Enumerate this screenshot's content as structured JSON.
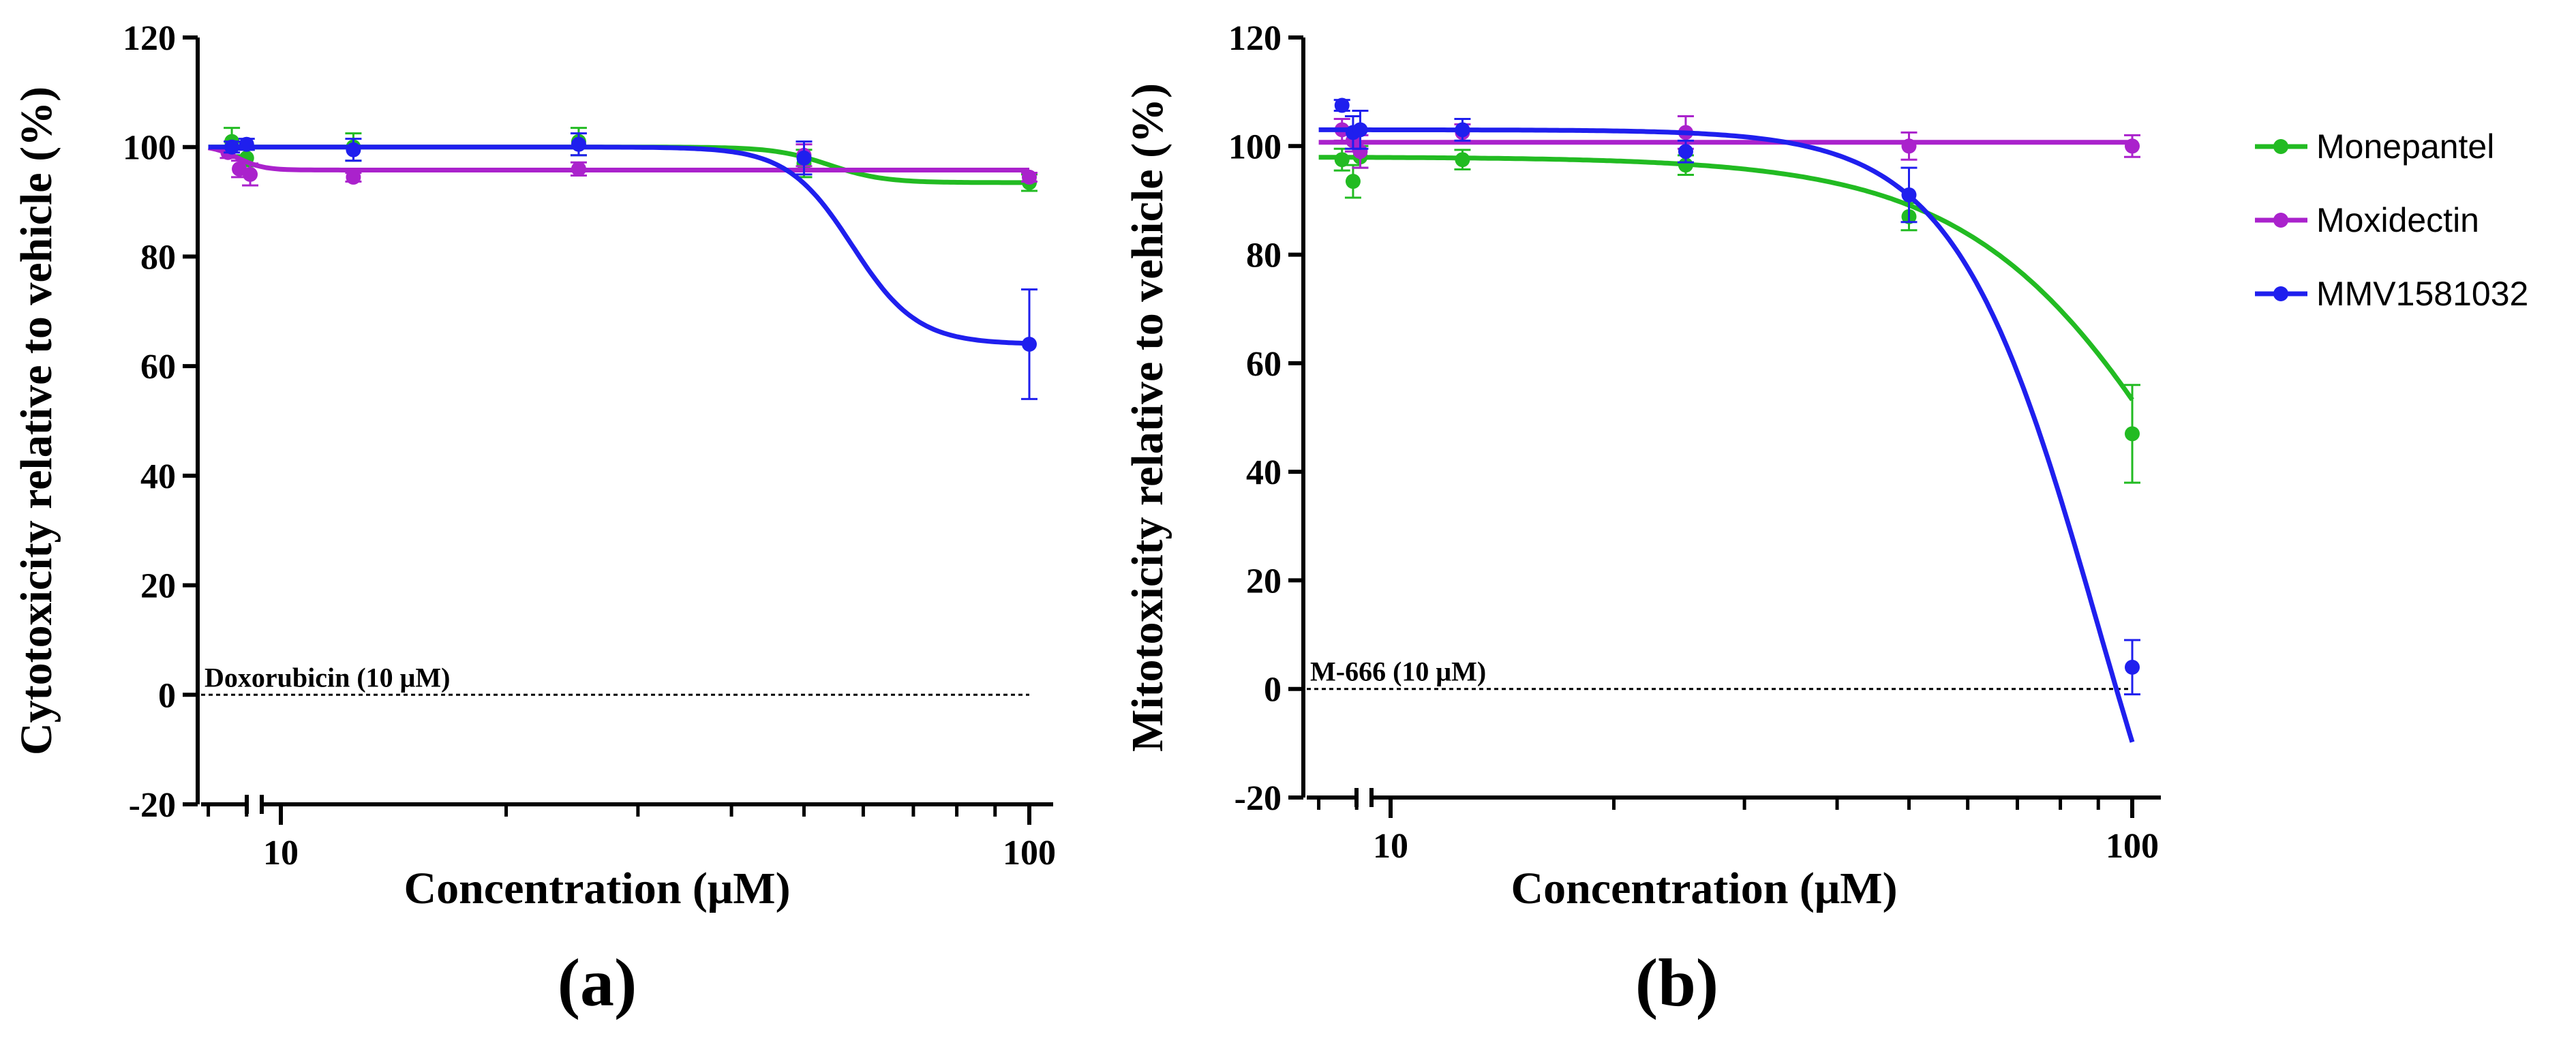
{
  "figure": {
    "legend": [
      {
        "name": "Monepantel",
        "color": "#22bb22"
      },
      {
        "name": "Moxidectin",
        "color": "#aa22cc"
      },
      {
        "name": "MMV1581032",
        "color": "#1f1fee"
      }
    ]
  },
  "chart_data": [
    {
      "type": "line",
      "panel_label": "(a)",
      "xlabel": "Concentration (μM)",
      "ylabel": "Cytotoxicity relative to vehicle (%)",
      "xscale": "log",
      "xlim": [
        8.0,
        110
      ],
      "ylim": [
        -20,
        120
      ],
      "yticks": [
        -20,
        0,
        20,
        40,
        60,
        80,
        100,
        120
      ],
      "xticks": [
        10,
        100
      ],
      "baseline": {
        "y": 0,
        "label": "Doxorubicin (10 μM)"
      },
      "series": [
        {
          "name": "Monepantel",
          "color": "#22bb22",
          "points": [
            {
              "x": 8.6,
              "y": 101,
              "err": 2.5
            },
            {
              "x": 9.0,
              "y": 98,
              "err": 1.5
            },
            {
              "x": 12.5,
              "y": 100,
              "err": 2.5
            },
            {
              "x": 25,
              "y": 101,
              "err": 2.5
            },
            {
              "x": 50,
              "y": 97,
              "err": 2.5
            },
            {
              "x": 100,
              "y": 93.5,
              "err": 1.5
            }
          ],
          "fit": {
            "top": 100,
            "bottom": 93.5,
            "ec50": 54,
            "hill": 12
          }
        },
        {
          "name": "Moxidectin",
          "color": "#aa22cc",
          "points": [
            {
              "x": 8.5,
              "y": 99,
              "err": 1
            },
            {
              "x": 8.8,
              "y": 96,
              "err": 1.5
            },
            {
              "x": 9.1,
              "y": 95,
              "err": 2
            },
            {
              "x": 12.5,
              "y": 94.5,
              "err": 0.8
            },
            {
              "x": 25,
              "y": 96,
              "err": 1.2
            },
            {
              "x": 50,
              "y": 98.5,
              "err": 2
            },
            {
              "x": 100,
              "y": 94.5,
              "err": 0.8
            }
          ],
          "fit": {
            "top": 100.3,
            "bottom": 95.8,
            "ec50": 8.75,
            "hill": 25
          }
        },
        {
          "name": "MMV1581032",
          "color": "#1f1fee",
          "points": [
            {
              "x": 8.6,
              "y": 100,
              "err": 1
            },
            {
              "x": 9.0,
              "y": 100.5,
              "err": 1
            },
            {
              "x": 12.5,
              "y": 99.5,
              "err": 2
            },
            {
              "x": 25,
              "y": 100.5,
              "err": 2
            },
            {
              "x": 50,
              "y": 98,
              "err": 3
            },
            {
              "x": 100,
              "y": 64,
              "err": 10
            }
          ],
          "fit": {
            "top": 100,
            "bottom": 64,
            "ec50": 58,
            "hill": 10
          }
        }
      ]
    },
    {
      "type": "line",
      "panel_label": "(b)",
      "xlabel": "Concentration (μM)",
      "ylabel": "Mitotoxicity relative to vehicle (%)",
      "xscale": "log",
      "xlim": [
        8.0,
        110
      ],
      "ylim": [
        -20,
        120
      ],
      "yticks": [
        -20,
        0,
        20,
        40,
        60,
        80,
        100,
        120
      ],
      "xticks": [
        10,
        100
      ],
      "baseline": {
        "y": 0,
        "label": "M-666 (10 μM)"
      },
      "series": [
        {
          "name": "Monepantel",
          "color": "#22bb22",
          "points": [
            {
              "x": 8.6,
              "y": 97.5,
              "err": 2
            },
            {
              "x": 8.9,
              "y": 93.5,
              "err": 3
            },
            {
              "x": 9.1,
              "y": 98,
              "err": 2
            },
            {
              "x": 12.5,
              "y": 97.5,
              "err": 1.8
            },
            {
              "x": 25,
              "y": 96.5,
              "err": 1.8
            },
            {
              "x": 50,
              "y": 87,
              "err": 2.5
            },
            {
              "x": 100,
              "y": 47,
              "err": 9
            }
          ],
          "fit": {
            "top": 98,
            "bottom": -40,
            "ec50": 130,
            "hill": 2.8
          }
        },
        {
          "name": "Moxidectin",
          "color": "#aa22cc",
          "points": [
            {
              "x": 8.6,
              "y": 103,
              "err": 2
            },
            {
              "x": 8.9,
              "y": 101,
              "err": 2
            },
            {
              "x": 9.1,
              "y": 99,
              "err": 3
            },
            {
              "x": 12.5,
              "y": 102.5,
              "err": 1.5
            },
            {
              "x": 25,
              "y": 102.5,
              "err": 3
            },
            {
              "x": 50,
              "y": 100,
              "err": 2.5
            },
            {
              "x": 100,
              "y": 100,
              "err": 2
            }
          ],
          "fit": {
            "top": 100.7,
            "bottom": 100.7,
            "ec50": 50,
            "hill": 1
          }
        },
        {
          "name": "MMV1581032",
          "color": "#1f1fee",
          "points": [
            {
              "x": 8.6,
              "y": 107.5,
              "err": 1
            },
            {
              "x": 8.9,
              "y": 102.5,
              "err": 3
            },
            {
              "x": 9.1,
              "y": 103,
              "err": 3.5
            },
            {
              "x": 12.5,
              "y": 103,
              "err": 2
            },
            {
              "x": 25,
              "y": 99,
              "err": 2
            },
            {
              "x": 50,
              "y": 91,
              "err": 5
            },
            {
              "x": 100,
              "y": 4,
              "err": 5
            }
          ],
          "fit": {
            "top": 103,
            "bottom": -80,
            "ec50": 90,
            "hill": 4.5
          }
        }
      ]
    }
  ]
}
